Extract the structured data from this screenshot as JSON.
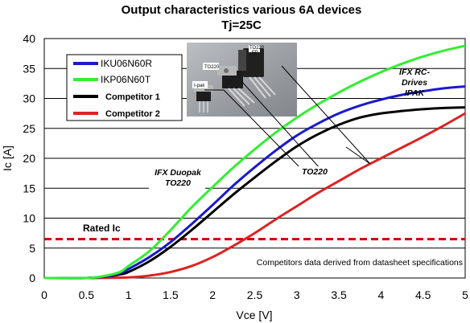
{
  "chart_data": {
    "type": "line",
    "title": "Output characteristics various 6A devices",
    "subtitle": "Tj=25C",
    "xlabel": "Vce [V]",
    "ylabel": "Ic [A]",
    "xlim": [
      0,
      5
    ],
    "ylim": [
      0,
      40
    ],
    "xticks": [
      "0",
      "0.5",
      "1",
      "1.5",
      "2",
      "2.5",
      "3",
      "3.5",
      "4",
      "4.5",
      "5"
    ],
    "yticks": [
      "0",
      "5",
      "10",
      "15",
      "20",
      "25",
      "30",
      "35",
      "40"
    ],
    "grid": "horizontal",
    "legend_position": "top-left",
    "series": [
      {
        "name": "IKU06N60R",
        "color": "#1a1acc",
        "points": [
          [
            0,
            0
          ],
          [
            0.5,
            0
          ],
          [
            0.7,
            0.2
          ],
          [
            0.9,
            0.8
          ],
          [
            1.0,
            1.5
          ],
          [
            1.25,
            3.5
          ],
          [
            1.5,
            6.0
          ],
          [
            1.75,
            9.0
          ],
          [
            2.0,
            12.2
          ],
          [
            2.25,
            15.5
          ],
          [
            2.5,
            18.5
          ],
          [
            2.75,
            21.3
          ],
          [
            3.0,
            23.8
          ],
          [
            3.25,
            25.8
          ],
          [
            3.5,
            27.5
          ],
          [
            3.75,
            28.8
          ],
          [
            4.0,
            29.8
          ],
          [
            4.25,
            30.6
          ],
          [
            4.5,
            31.2
          ],
          [
            4.75,
            31.7
          ],
          [
            5.0,
            32.0
          ]
        ]
      },
      {
        "name": "IKP06N60T",
        "color": "#33ee33",
        "points": [
          [
            0,
            0
          ],
          [
            0.5,
            0
          ],
          [
            0.7,
            0.3
          ],
          [
            0.9,
            1.0
          ],
          [
            1.0,
            2.0
          ],
          [
            1.25,
            4.5
          ],
          [
            1.5,
            8.0
          ],
          [
            1.75,
            11.8
          ],
          [
            2.0,
            15.2
          ],
          [
            2.25,
            18.5
          ],
          [
            2.5,
            21.5
          ],
          [
            2.75,
            24.3
          ],
          [
            3.0,
            26.8
          ],
          [
            3.25,
            29.0
          ],
          [
            3.5,
            31.0
          ],
          [
            3.75,
            32.8
          ],
          [
            4.0,
            34.4
          ],
          [
            4.25,
            35.8
          ],
          [
            4.5,
            37.0
          ],
          [
            4.75,
            38.0
          ],
          [
            5.0,
            38.8
          ]
        ]
      },
      {
        "name": "Competitor 1",
        "color": "#000000",
        "points": [
          [
            0,
            0
          ],
          [
            0.5,
            0
          ],
          [
            0.7,
            0.2
          ],
          [
            0.9,
            0.6
          ],
          [
            1.0,
            1.0
          ],
          [
            1.25,
            2.8
          ],
          [
            1.5,
            5.2
          ],
          [
            1.75,
            8.0
          ],
          [
            2.0,
            11.0
          ],
          [
            2.25,
            14.0
          ],
          [
            2.5,
            16.8
          ],
          [
            2.75,
            19.5
          ],
          [
            3.0,
            22.0
          ],
          [
            3.25,
            24.0
          ],
          [
            3.5,
            25.6
          ],
          [
            3.75,
            26.8
          ],
          [
            4.0,
            27.5
          ],
          [
            4.25,
            27.9
          ],
          [
            4.5,
            28.2
          ],
          [
            4.75,
            28.4
          ],
          [
            5.0,
            28.5
          ]
        ]
      },
      {
        "name": "Competitor 2",
        "color": "#dd2222",
        "points": [
          [
            0,
            0
          ],
          [
            0.5,
            0
          ],
          [
            1.0,
            0.1
          ],
          [
            1.25,
            0.4
          ],
          [
            1.5,
            1.0
          ],
          [
            1.75,
            2.0
          ],
          [
            2.0,
            3.5
          ],
          [
            2.25,
            5.4
          ],
          [
            2.5,
            7.5
          ],
          [
            2.75,
            9.8
          ],
          [
            3.0,
            12.0
          ],
          [
            3.25,
            14.2
          ],
          [
            3.5,
            16.2
          ],
          [
            3.75,
            18.2
          ],
          [
            4.0,
            20.0
          ],
          [
            4.25,
            21.8
          ],
          [
            4.5,
            23.6
          ],
          [
            4.75,
            25.5
          ],
          [
            5.0,
            27.5
          ]
        ]
      }
    ],
    "reference_line": {
      "label": "Rated Ic",
      "y": 6.5,
      "color": "#cc0000"
    },
    "annotations": [
      {
        "text_lines": [
          "IFX Duopak",
          "TO220"
        ]
      },
      {
        "text_lines": [
          "TO220"
        ]
      },
      {
        "text_lines": [
          "IFX RC-",
          "Drives",
          "IPAK"
        ]
      }
    ],
    "footnote": "Competitors data derived from datasheet specifications",
    "photo_labels": [
      "TO220",
      "FP",
      "TO220",
      "I-pak"
    ]
  }
}
